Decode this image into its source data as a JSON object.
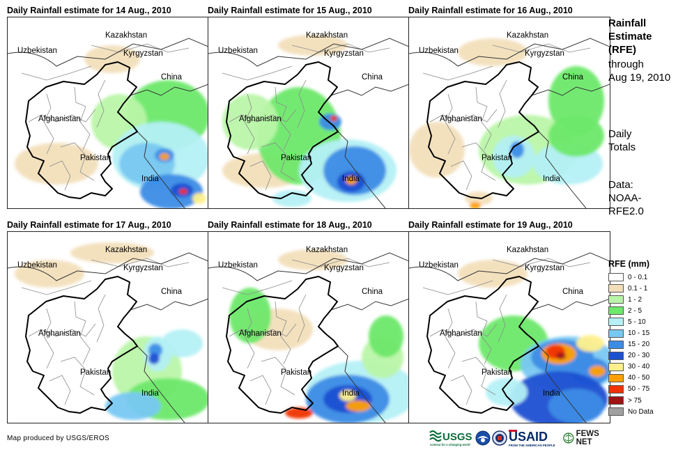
{
  "panels": [
    {
      "title": "Daily Rainfall estimate for 14 Aug., 2010"
    },
    {
      "title": "Daily Rainfall estimate for 15 Aug., 2010"
    },
    {
      "title": "Daily Rainfall estimate for 16 Aug., 2010"
    },
    {
      "title": "Daily Rainfall estimate for 17 Aug., 2010"
    },
    {
      "title": "Daily Rainfall estimate for 18 Aug., 2010"
    },
    {
      "title": "Daily Rainfall estimate for 19 Aug., 2010"
    }
  ],
  "map_labels": {
    "kazakhstan": "Kazakhstan",
    "uzbekistan": "Uzbekistan",
    "kyrgyzstan": "Kyrgyzstan",
    "china": "China",
    "afghanistan": "Afghanistan",
    "pakistan": "Pakistan",
    "india": "India"
  },
  "side": {
    "title_lines": [
      "Rainfall",
      "Estimate",
      "(RFE)"
    ],
    "through_lines": [
      "through",
      "Aug 19, 2010"
    ],
    "totals_lines": [
      "Daily",
      "Totals"
    ],
    "data_lines": [
      "Data:",
      "NOAA-",
      "RFE2.0"
    ]
  },
  "legend": {
    "title": "RFE (mm)",
    "items": [
      {
        "label": "0 - 0.1",
        "color": "#ffffff"
      },
      {
        "label": "0.1 - 1",
        "color": "#f2dfba"
      },
      {
        "label": "1 - 2",
        "color": "#b9f5a8"
      },
      {
        "label": "2 - 5",
        "color": "#6ee86a"
      },
      {
        "label": "5 - 10",
        "color": "#b4f0f5"
      },
      {
        "label": "10 - 15",
        "color": "#78c8f2"
      },
      {
        "label": "15 - 20",
        "color": "#3c8ce6"
      },
      {
        "label": "20 - 30",
        "color": "#1e50d2"
      },
      {
        "label": "30 - 40",
        "color": "#fff08c"
      },
      {
        "label": "40 - 50",
        "color": "#ffa000"
      },
      {
        "label": "50 - 75",
        "color": "#f03200"
      },
      {
        "label": "> 75",
        "color": "#a01414"
      },
      {
        "label": "No Data",
        "color": "#a0a0a0"
      }
    ]
  },
  "credit": "Map produced by USGS/EROS",
  "logos": {
    "usgs": "USGS",
    "usgs_tagline": "science for a changing world",
    "usaid": "USAID",
    "usaid_tagline": "FROM THE AMERICAN PEOPLE",
    "fewsnet": "FEWS NET"
  }
}
